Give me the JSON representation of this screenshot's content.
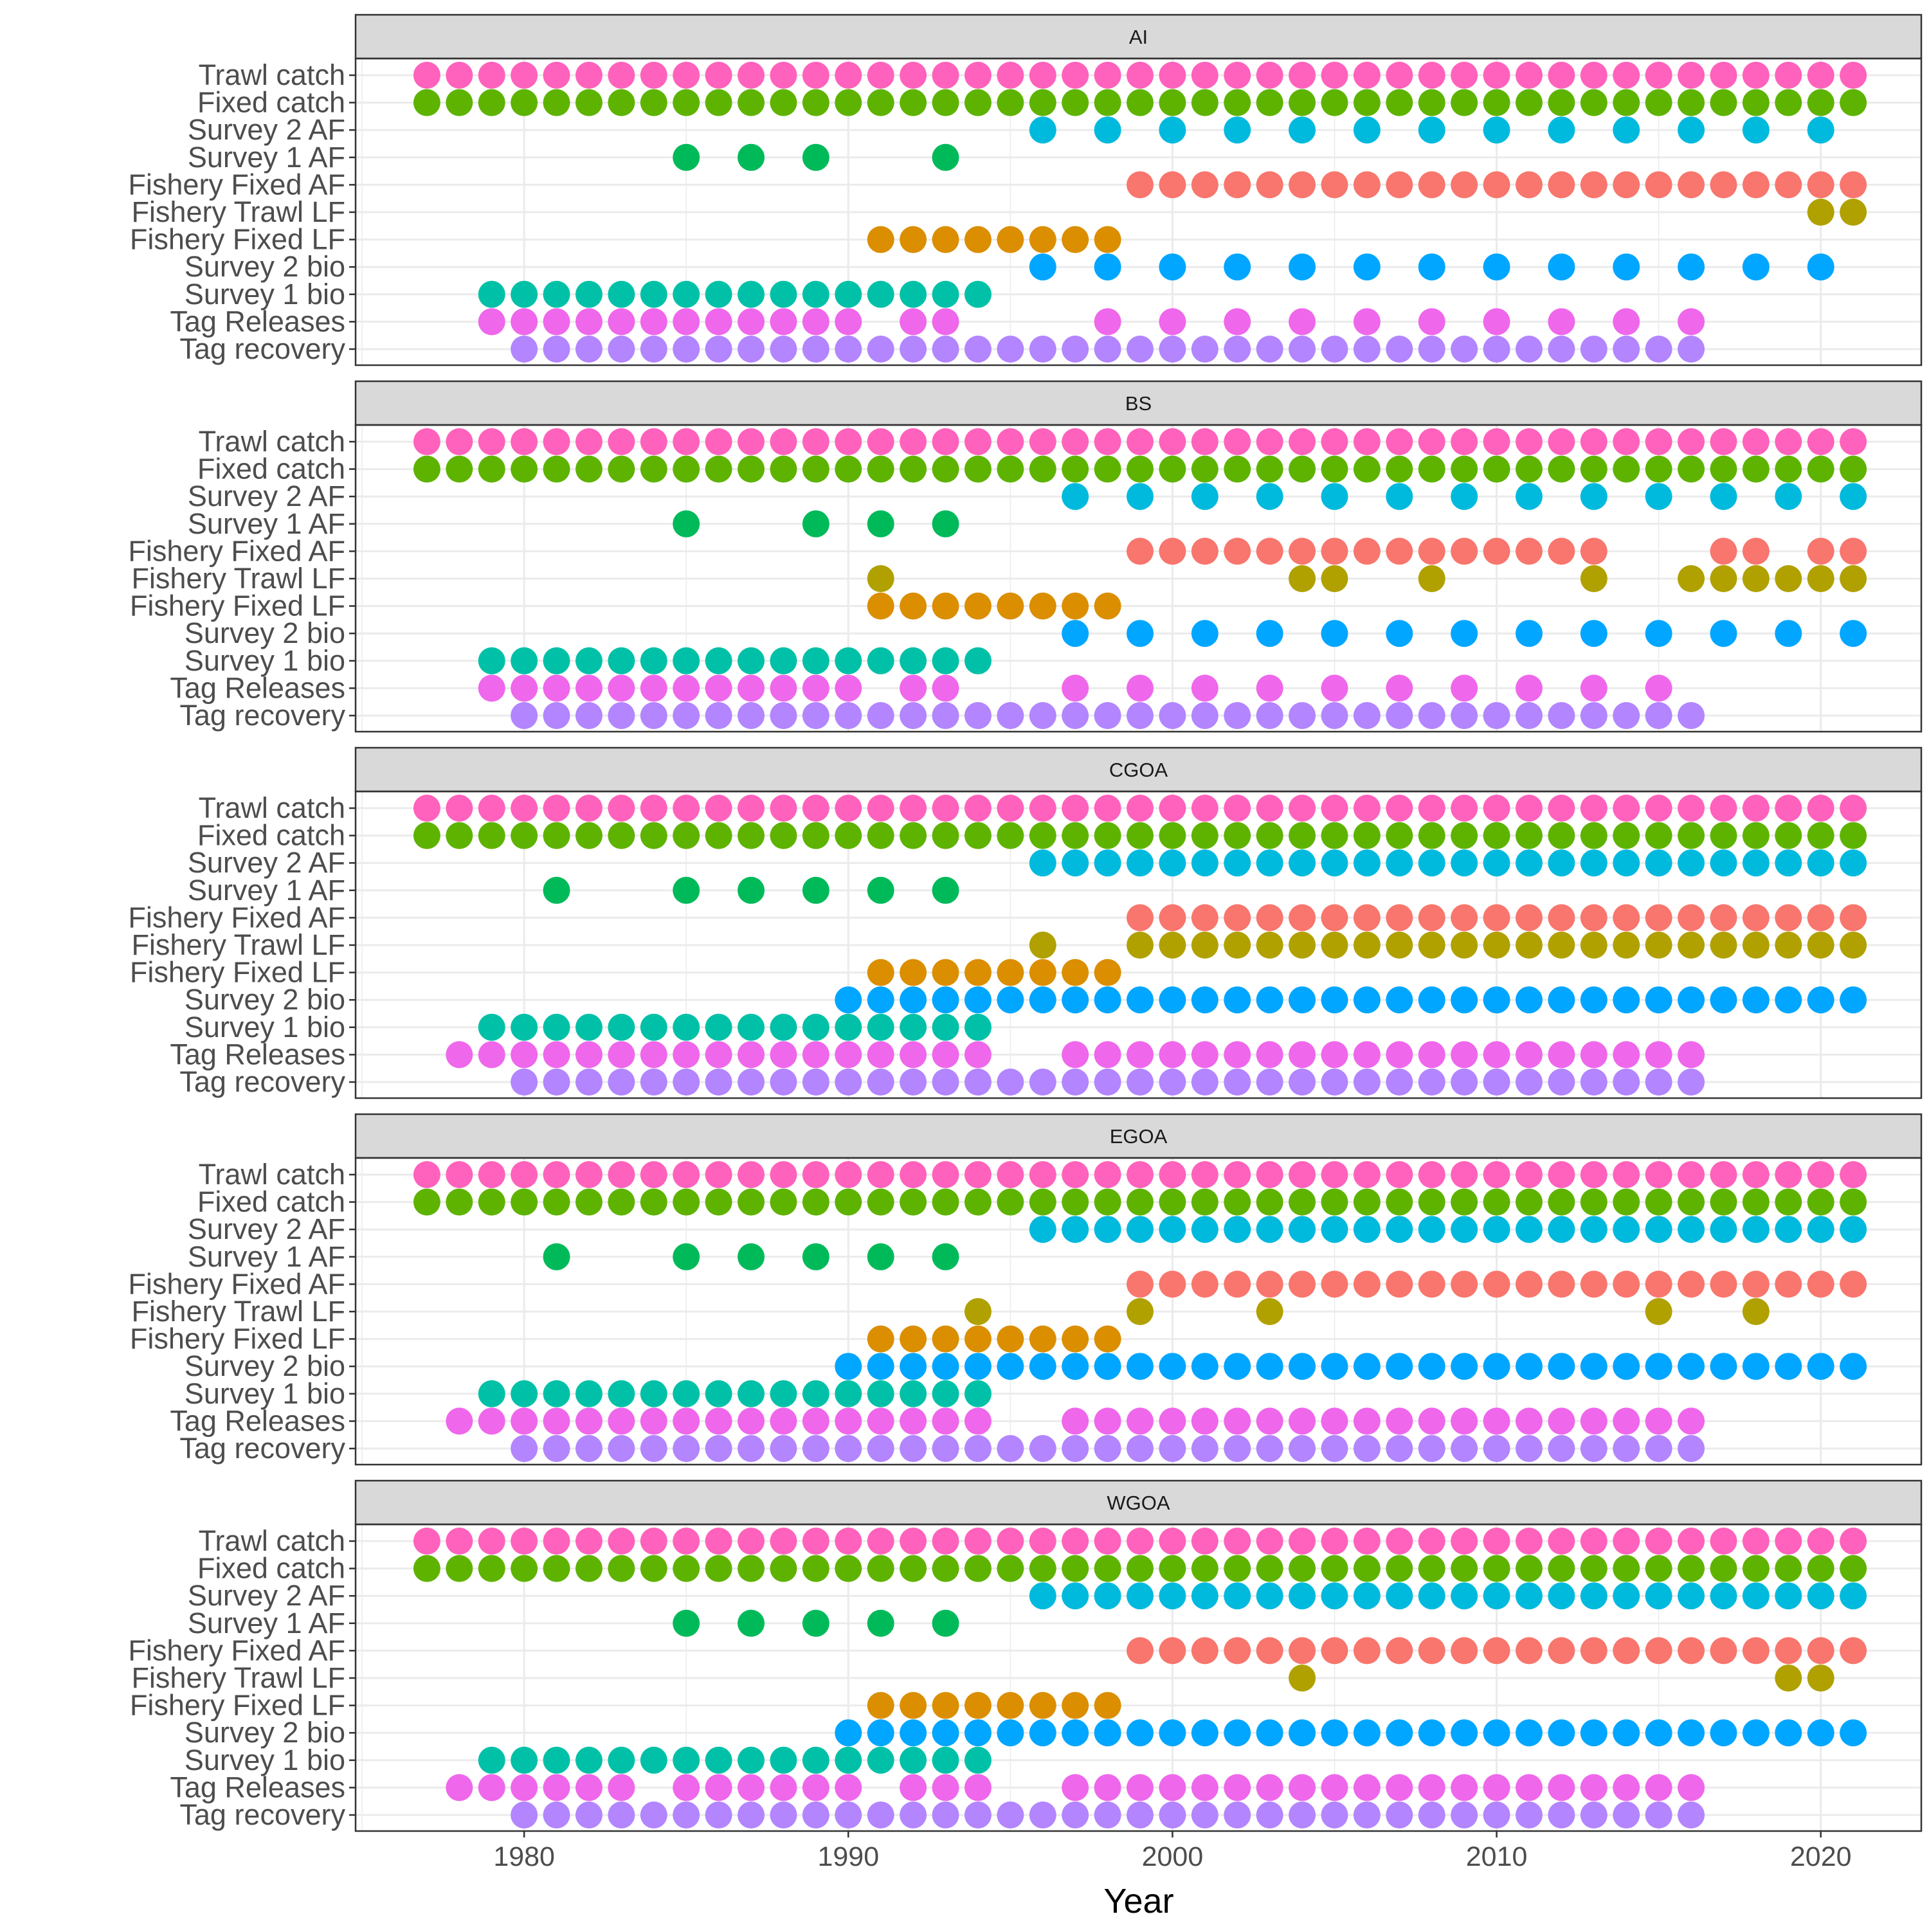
{
  "chart_data": {
    "type": "scatter",
    "xlabel": "Year",
    "ylabel": "",
    "xlim": [
      1974.8,
      2023.1
    ],
    "x_ticks": [
      1980,
      1990,
      2000,
      2010,
      2020
    ],
    "grid": true,
    "legend": "none",
    "series": [
      {
        "name": "Trawl catch",
        "color": "#FF62BC"
      },
      {
        "name": "Fixed catch",
        "color": "#5EB300"
      },
      {
        "name": "Survey 2 AF",
        "color": "#00BADE"
      },
      {
        "name": "Survey 1 AF",
        "color": "#00BA5A"
      },
      {
        "name": "Fishery Fixed AF",
        "color": "#F8766D"
      },
      {
        "name": "Fishery Trawl LF",
        "color": "#B0A100"
      },
      {
        "name": "Fishery Fixed LF",
        "color": "#DB8E00"
      },
      {
        "name": "Survey 2 bio",
        "color": "#00A6FF"
      },
      {
        "name": "Survey 1 bio",
        "color": "#00C1A7"
      },
      {
        "name": "Tag Releases",
        "color": "#EF67EB"
      },
      {
        "name": "Tag recovery",
        "color": "#B385FF"
      }
    ],
    "panels": [
      {
        "strip": "AI",
        "rows": [
          {
            "series": "Trawl catch",
            "ranges": [
              [
                1977,
                2021
              ]
            ]
          },
          {
            "series": "Fixed catch",
            "ranges": [
              [
                1977,
                2021
              ]
            ]
          },
          {
            "series": "Survey 2 AF",
            "years": [
              1996,
              1998,
              2000,
              2002,
              2004,
              2006,
              2008,
              2010,
              2012,
              2014,
              2016,
              2018,
              2020
            ]
          },
          {
            "series": "Survey 1 AF",
            "years": [
              1985,
              1987,
              1989,
              1993
            ]
          },
          {
            "series": "Fishery Fixed AF",
            "ranges": [
              [
                1999,
                2021
              ]
            ]
          },
          {
            "series": "Fishery Trawl LF",
            "years": [
              2020,
              2021
            ]
          },
          {
            "series": "Fishery Fixed LF",
            "ranges": [
              [
                1991,
                1998
              ]
            ]
          },
          {
            "series": "Survey 2 bio",
            "years": [
              1996,
              1998,
              2000,
              2002,
              2004,
              2006,
              2008,
              2010,
              2012,
              2014,
              2016,
              2018,
              2020
            ]
          },
          {
            "series": "Survey 1 bio",
            "ranges": [
              [
                1979,
                1994
              ]
            ]
          },
          {
            "series": "Tag Releases",
            "years": [
              1979,
              1980,
              1981,
              1982,
              1983,
              1984,
              1985,
              1986,
              1987,
              1988,
              1989,
              1990,
              1992,
              1993,
              1998,
              2000,
              2002,
              2004,
              2006,
              2008,
              2010,
              2012,
              2014,
              2016
            ]
          },
          {
            "series": "Tag recovery",
            "ranges": [
              [
                1980,
                2016
              ]
            ]
          }
        ]
      },
      {
        "strip": "BS",
        "rows": [
          {
            "series": "Trawl catch",
            "ranges": [
              [
                1977,
                2021
              ]
            ]
          },
          {
            "series": "Fixed catch",
            "ranges": [
              [
                1977,
                2021
              ]
            ]
          },
          {
            "series": "Survey 2 AF",
            "years": [
              1997,
              1999,
              2001,
              2003,
              2005,
              2007,
              2009,
              2011,
              2013,
              2015,
              2017,
              2019,
              2021
            ]
          },
          {
            "series": "Survey 1 AF",
            "years": [
              1985,
              1989,
              1991,
              1993
            ]
          },
          {
            "series": "Fishery Fixed AF",
            "years": [
              1999,
              2000,
              2001,
              2002,
              2003,
              2004,
              2005,
              2006,
              2007,
              2008,
              2009,
              2010,
              2011,
              2012,
              2013,
              2017,
              2018,
              2020,
              2021
            ]
          },
          {
            "series": "Fishery Trawl LF",
            "years": [
              1991,
              2004,
              2005,
              2008,
              2013,
              2016,
              2017,
              2018,
              2019,
              2020,
              2021
            ]
          },
          {
            "series": "Fishery Fixed LF",
            "ranges": [
              [
                1991,
                1998
              ]
            ]
          },
          {
            "series": "Survey 2 bio",
            "years": [
              1997,
              1999,
              2001,
              2003,
              2005,
              2007,
              2009,
              2011,
              2013,
              2015,
              2017,
              2019,
              2021
            ]
          },
          {
            "series": "Survey 1 bio",
            "ranges": [
              [
                1979,
                1994
              ]
            ]
          },
          {
            "series": "Tag Releases",
            "years": [
              1979,
              1980,
              1981,
              1982,
              1983,
              1984,
              1985,
              1986,
              1987,
              1988,
              1989,
              1990,
              1992,
              1993,
              1997,
              1999,
              2001,
              2003,
              2005,
              2007,
              2009,
              2011,
              2013,
              2015
            ]
          },
          {
            "series": "Tag recovery",
            "ranges": [
              [
                1980,
                2016
              ]
            ]
          }
        ]
      },
      {
        "strip": "CGOA",
        "rows": [
          {
            "series": "Trawl catch",
            "ranges": [
              [
                1977,
                2021
              ]
            ]
          },
          {
            "series": "Fixed catch",
            "ranges": [
              [
                1977,
                2021
              ]
            ]
          },
          {
            "series": "Survey 2 AF",
            "ranges": [
              [
                1996,
                2021
              ]
            ]
          },
          {
            "series": "Survey 1 AF",
            "years": [
              1981,
              1985,
              1987,
              1989,
              1991,
              1993
            ]
          },
          {
            "series": "Fishery Fixed AF",
            "ranges": [
              [
                1999,
                2021
              ]
            ]
          },
          {
            "series": "Fishery Trawl LF",
            "years": [
              1996,
              1999,
              2000,
              2001,
              2002,
              2003,
              2004,
              2005,
              2006,
              2007,
              2008,
              2009,
              2010,
              2011,
              2012,
              2013,
              2014,
              2015,
              2016,
              2017,
              2018,
              2019,
              2020,
              2021
            ]
          },
          {
            "series": "Fishery Fixed LF",
            "ranges": [
              [
                1991,
                1998
              ]
            ]
          },
          {
            "series": "Survey 2 bio",
            "ranges": [
              [
                1990,
                2021
              ]
            ]
          },
          {
            "series": "Survey 1 bio",
            "ranges": [
              [
                1979,
                1994
              ]
            ]
          },
          {
            "series": "Tag Releases",
            "years": [
              1978,
              1979,
              1980,
              1981,
              1982,
              1983,
              1984,
              1985,
              1986,
              1987,
              1988,
              1989,
              1990,
              1991,
              1992,
              1993,
              1994,
              1997,
              1998,
              1999,
              2000,
              2001,
              2002,
              2003,
              2004,
              2005,
              2006,
              2007,
              2008,
              2009,
              2010,
              2011,
              2012,
              2013,
              2014,
              2015,
              2016
            ]
          },
          {
            "series": "Tag recovery",
            "ranges": [
              [
                1980,
                2016
              ]
            ]
          }
        ]
      },
      {
        "strip": "EGOA",
        "rows": [
          {
            "series": "Trawl catch",
            "ranges": [
              [
                1977,
                2021
              ]
            ]
          },
          {
            "series": "Fixed catch",
            "ranges": [
              [
                1977,
                2021
              ]
            ]
          },
          {
            "series": "Survey 2 AF",
            "ranges": [
              [
                1996,
                2021
              ]
            ]
          },
          {
            "series": "Survey 1 AF",
            "years": [
              1981,
              1985,
              1987,
              1989,
              1991,
              1993
            ]
          },
          {
            "series": "Fishery Fixed AF",
            "ranges": [
              [
                1999,
                2021
              ]
            ]
          },
          {
            "series": "Fishery Trawl LF",
            "years": [
              1994,
              1999,
              2003,
              2015,
              2018
            ]
          },
          {
            "series": "Fishery Fixed LF",
            "ranges": [
              [
                1991,
                1998
              ]
            ]
          },
          {
            "series": "Survey 2 bio",
            "ranges": [
              [
                1990,
                2021
              ]
            ]
          },
          {
            "series": "Survey 1 bio",
            "ranges": [
              [
                1979,
                1994
              ]
            ]
          },
          {
            "series": "Tag Releases",
            "years": [
              1978,
              1979,
              1980,
              1981,
              1982,
              1983,
              1984,
              1985,
              1986,
              1987,
              1988,
              1989,
              1990,
              1991,
              1992,
              1993,
              1994,
              1997,
              1998,
              1999,
              2000,
              2001,
              2002,
              2003,
              2004,
              2005,
              2006,
              2007,
              2008,
              2009,
              2010,
              2011,
              2012,
              2013,
              2014,
              2015,
              2016
            ]
          },
          {
            "series": "Tag recovery",
            "ranges": [
              [
                1980,
                2016
              ]
            ]
          }
        ]
      },
      {
        "strip": "WGOA",
        "rows": [
          {
            "series": "Trawl catch",
            "ranges": [
              [
                1977,
                2021
              ]
            ]
          },
          {
            "series": "Fixed catch",
            "ranges": [
              [
                1977,
                2021
              ]
            ]
          },
          {
            "series": "Survey 2 AF",
            "ranges": [
              [
                1996,
                2021
              ]
            ]
          },
          {
            "series": "Survey 1 AF",
            "years": [
              1985,
              1987,
              1989,
              1991,
              1993
            ]
          },
          {
            "series": "Fishery Fixed AF",
            "ranges": [
              [
                1999,
                2021
              ]
            ]
          },
          {
            "series": "Fishery Trawl LF",
            "years": [
              2004,
              2019,
              2020
            ]
          },
          {
            "series": "Fishery Fixed LF",
            "ranges": [
              [
                1991,
                1998
              ]
            ]
          },
          {
            "series": "Survey 2 bio",
            "ranges": [
              [
                1990,
                2021
              ]
            ]
          },
          {
            "series": "Survey 1 bio",
            "ranges": [
              [
                1979,
                1994
              ]
            ]
          },
          {
            "series": "Tag Releases",
            "years": [
              1978,
              1979,
              1980,
              1981,
              1982,
              1983,
              1985,
              1986,
              1987,
              1988,
              1989,
              1990,
              1992,
              1993,
              1994,
              1997,
              1998,
              1999,
              2000,
              2001,
              2002,
              2003,
              2004,
              2005,
              2006,
              2007,
              2008,
              2009,
              2010,
              2011,
              2012,
              2013,
              2014,
              2015,
              2016
            ]
          },
          {
            "series": "Tag recovery",
            "ranges": [
              [
                1980,
                2016
              ]
            ]
          }
        ]
      }
    ]
  }
}
